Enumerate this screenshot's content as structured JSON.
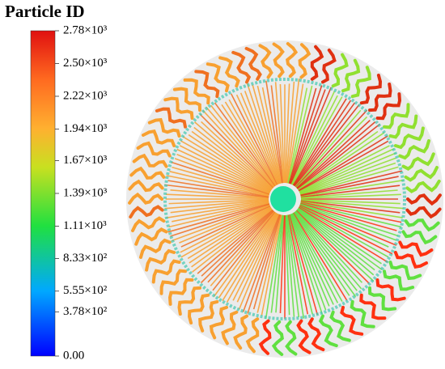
{
  "chart_data": {
    "type": "colorbar",
    "title": "Particle ID",
    "lim": [
      0,
      2780
    ],
    "ticks": [
      {
        "value": 0,
        "label": "0.00"
      },
      {
        "value": 378,
        "label": "3.78×10²"
      },
      {
        "value": 555,
        "label": "5.55×10²"
      },
      {
        "value": 833,
        "label": "8.33×10²"
      },
      {
        "value": 1110,
        "label": "1.11×10³"
      },
      {
        "value": 1390,
        "label": "1.39×10³"
      },
      {
        "value": 1670,
        "label": "1.67×10³"
      },
      {
        "value": 1940,
        "label": "1.94×10³"
      },
      {
        "value": 2220,
        "label": "2.22×10³"
      },
      {
        "value": 2500,
        "label": "2.50×10³"
      },
      {
        "value": 2780,
        "label": "2.78×10³"
      }
    ]
  }
}
